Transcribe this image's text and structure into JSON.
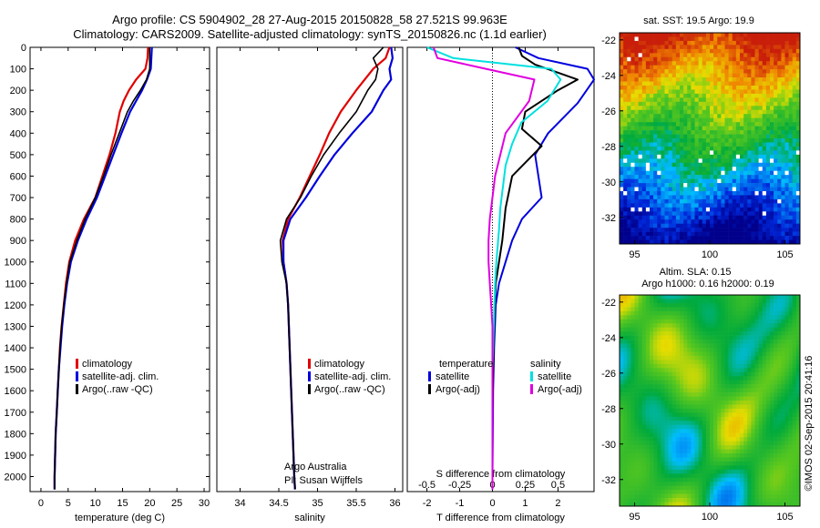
{
  "header": {
    "line1": "Argo profile: CS 5904902_28 27-Aug-2015 20150828_58 27.521S 99.963E",
    "line2": "Climatology: CARS2009. Satellite-adjusted climatology: synTS_20150826.nc (1.1d earlier)"
  },
  "chart_data": [
    {
      "type": "line",
      "id": "temperature",
      "xlabel": "temperature (deg C)",
      "ylabel": "",
      "xlim": [
        -2,
        31
      ],
      "ylim": [
        2070,
        0
      ],
      "xticks": [
        0,
        5,
        10,
        15,
        20,
        25,
        30
      ],
      "yticks": [
        0,
        100,
        200,
        300,
        400,
        500,
        600,
        700,
        800,
        900,
        1000,
        1100,
        1200,
        1300,
        1400,
        1500,
        1600,
        1700,
        1800,
        1900,
        2000
      ],
      "legend": [
        "climatology",
        "satellite-adj. clim.",
        "Argo(..raw -QC)"
      ],
      "series": [
        {
          "name": "climatology",
          "color": "#e00000",
          "points": [
            [
              19.7,
              0
            ],
            [
              19.6,
              50
            ],
            [
              19.2,
              100
            ],
            [
              17.5,
              150
            ],
            [
              16.2,
              200
            ],
            [
              15.2,
              250
            ],
            [
              14.5,
              300
            ],
            [
              13.7,
              400
            ],
            [
              12.6,
              500
            ],
            [
              11.3,
              600
            ],
            [
              10.0,
              700
            ],
            [
              7.9,
              800
            ],
            [
              6.3,
              900
            ],
            [
              5.2,
              1000
            ],
            [
              4.6,
              1100
            ],
            [
              4.2,
              1200
            ],
            [
              3.8,
              1300
            ],
            [
              3.5,
              1400
            ],
            [
              3.3,
              1500
            ],
            [
              3.1,
              1600
            ],
            [
              2.9,
              1700
            ],
            [
              2.7,
              1800
            ],
            [
              2.6,
              1900
            ],
            [
              2.5,
              2000
            ],
            [
              2.5,
              2060
            ]
          ]
        },
        {
          "name": "satellite-adj. clim.",
          "color": "#0000dd",
          "points": [
            [
              20.4,
              0
            ],
            [
              20.3,
              50
            ],
            [
              20.2,
              100
            ],
            [
              19.5,
              150
            ],
            [
              18.6,
              200
            ],
            [
              17.5,
              250
            ],
            [
              16.4,
              300
            ],
            [
              14.8,
              400
            ],
            [
              13.3,
              500
            ],
            [
              11.8,
              600
            ],
            [
              10.3,
              700
            ],
            [
              8.4,
              800
            ],
            [
              6.8,
              900
            ],
            [
              5.5,
              1000
            ],
            [
              4.8,
              1100
            ],
            [
              4.3,
              1200
            ],
            [
              3.9,
              1300
            ],
            [
              3.6,
              1400
            ],
            [
              3.3,
              1500
            ],
            [
              3.1,
              1600
            ],
            [
              2.9,
              1700
            ],
            [
              2.7,
              1800
            ],
            [
              2.6,
              1900
            ],
            [
              2.5,
              2000
            ],
            [
              2.5,
              2060
            ]
          ]
        },
        {
          "name": "Argo(..raw -QC)",
          "color": "#000000",
          "points": [
            [
              20.0,
              0
            ],
            [
              20.0,
              50
            ],
            [
              20.0,
              100
            ],
            [
              19.4,
              150
            ],
            [
              18.3,
              200
            ],
            [
              17.0,
              250
            ],
            [
              15.9,
              300
            ],
            [
              14.4,
              400
            ],
            [
              12.9,
              500
            ],
            [
              11.5,
              600
            ],
            [
              10.0,
              700
            ],
            [
              8.1,
              800
            ],
            [
              6.6,
              900
            ],
            [
              5.3,
              1000
            ],
            [
              4.7,
              1100
            ],
            [
              4.2,
              1200
            ],
            [
              3.8,
              1300
            ],
            [
              3.5,
              1400
            ],
            [
              3.3,
              1500
            ],
            [
              3.1,
              1600
            ],
            [
              2.9,
              1700
            ],
            [
              2.7,
              1800
            ],
            [
              2.6,
              1900
            ],
            [
              2.5,
              2000
            ],
            [
              2.5,
              2060
            ]
          ]
        }
      ]
    },
    {
      "type": "line",
      "id": "salinity",
      "xlabel": "salinity",
      "xlim": [
        33.7,
        36.1
      ],
      "ylim": [
        2070,
        0
      ],
      "xticks": [
        34,
        34.5,
        35,
        35.5,
        36
      ],
      "legend": [
        "climatology",
        "satellite-adj. clim.",
        "Argo(..raw -QC)"
      ],
      "annotation": [
        "Argo Australia",
        "PI: Susan Wijffels"
      ],
      "series": [
        {
          "name": "climatology",
          "color": "#e00000",
          "points": [
            [
              35.93,
              0
            ],
            [
              35.88,
              50
            ],
            [
              35.72,
              100
            ],
            [
              35.5,
              200
            ],
            [
              35.3,
              300
            ],
            [
              35.15,
              400
            ],
            [
              35.03,
              500
            ],
            [
              34.9,
              600
            ],
            [
              34.77,
              700
            ],
            [
              34.62,
              800
            ],
            [
              34.55,
              900
            ],
            [
              34.56,
              1000
            ],
            [
              34.6,
              1100
            ],
            [
              34.62,
              1200
            ],
            [
              34.64,
              1400
            ],
            [
              34.66,
              1600
            ],
            [
              34.68,
              1800
            ],
            [
              34.7,
              2000
            ],
            [
              34.71,
              2060
            ]
          ]
        },
        {
          "name": "satellite-adj. clim.",
          "color": "#0000dd",
          "points": [
            [
              35.95,
              0
            ],
            [
              35.97,
              50
            ],
            [
              35.93,
              100
            ],
            [
              35.95,
              150
            ],
            [
              35.85,
              200
            ],
            [
              35.7,
              300
            ],
            [
              35.45,
              400
            ],
            [
              35.22,
              500
            ],
            [
              35.03,
              600
            ],
            [
              34.85,
              700
            ],
            [
              34.65,
              800
            ],
            [
              34.56,
              900
            ],
            [
              34.56,
              1000
            ],
            [
              34.6,
              1100
            ],
            [
              34.62,
              1200
            ],
            [
              34.64,
              1400
            ],
            [
              34.66,
              1600
            ],
            [
              34.68,
              1800
            ],
            [
              34.7,
              2000
            ],
            [
              34.71,
              2060
            ]
          ]
        },
        {
          "name": "Argo(..raw -QC)",
          "color": "#000000",
          "points": [
            [
              35.85,
              0
            ],
            [
              35.72,
              50
            ],
            [
              35.78,
              100
            ],
            [
              35.75,
              150
            ],
            [
              35.65,
              200
            ],
            [
              35.5,
              300
            ],
            [
              35.28,
              400
            ],
            [
              35.08,
              500
            ],
            [
              34.92,
              600
            ],
            [
              34.78,
              700
            ],
            [
              34.6,
              800
            ],
            [
              34.52,
              900
            ],
            [
              34.54,
              1000
            ],
            [
              34.6,
              1100
            ],
            [
              34.62,
              1200
            ],
            [
              34.64,
              1400
            ],
            [
              34.66,
              1600
            ],
            [
              34.68,
              1800
            ],
            [
              34.7,
              2000
            ],
            [
              34.71,
              2060
            ]
          ]
        }
      ]
    },
    {
      "type": "line",
      "id": "difference",
      "xlabel": "T difference from climatology",
      "xlabel_top": "S difference from climatology",
      "xlim": [
        -2.6,
        3.1
      ],
      "ylim": [
        2070,
        0
      ],
      "xticks": [
        -2,
        -1,
        0,
        1,
        2
      ],
      "xticks_s": [
        "-0.5",
        "-0.25",
        "0",
        "0.25",
        "0.5"
      ],
      "legend_groups": [
        {
          "title": "temperature",
          "items": [
            "satellite",
            "Argo(-adj)"
          ]
        },
        {
          "title": "salinity",
          "items": [
            "satellite",
            "Argo(-adj)"
          ]
        }
      ],
      "series": [
        {
          "name": "temperature satellite",
          "color": "#0000dd",
          "points": [
            [
              0.7,
              0
            ],
            [
              1.4,
              50
            ],
            [
              2.9,
              100
            ],
            [
              3.1,
              150
            ],
            [
              2.6,
              260
            ],
            [
              1.7,
              400
            ],
            [
              1.3,
              500
            ],
            [
              1.4,
              600
            ],
            [
              1.5,
              700
            ],
            [
              0.9,
              800
            ],
            [
              0.6,
              900
            ],
            [
              0.4,
              1000
            ],
            [
              0.2,
              1100
            ],
            [
              0.1,
              1200
            ],
            [
              0.05,
              1400
            ],
            [
              0.02,
              1600
            ],
            [
              0.01,
              1800
            ],
            [
              0.0,
              2000
            ],
            [
              0.0,
              2060
            ]
          ]
        },
        {
          "name": "temperature Argo(-adj)",
          "color": "#000000",
          "points": [
            [
              0.8,
              0
            ],
            [
              0.9,
              40
            ],
            [
              1.3,
              80
            ],
            [
              2.6,
              150
            ],
            [
              2.0,
              200
            ],
            [
              1.0,
              300
            ],
            [
              0.9,
              380
            ],
            [
              1.5,
              460
            ],
            [
              0.6,
              600
            ],
            [
              0.4,
              750
            ],
            [
              0.3,
              900
            ],
            [
              0.2,
              1000
            ],
            [
              0.1,
              1100
            ],
            [
              0.05,
              1300
            ],
            [
              0.02,
              1500
            ],
            [
              0.0,
              1700
            ],
            [
              0.0,
              1900
            ],
            [
              0.0,
              2060
            ]
          ]
        },
        {
          "name": "salinity satellite",
          "color": "#00e0e0",
          "points": [
            [
              -0.5,
              0
            ],
            [
              -0.3,
              50
            ],
            [
              0.45,
              100
            ],
            [
              0.52,
              150
            ],
            [
              0.42,
              250
            ],
            [
              0.22,
              350
            ],
            [
              0.15,
              450
            ],
            [
              0.1,
              550
            ],
            [
              0.08,
              650
            ],
            [
              0.06,
              750
            ],
            [
              0.05,
              850
            ],
            [
              0.03,
              1000
            ],
            [
              0.02,
              1100
            ],
            [
              0.01,
              1300
            ],
            [
              0.0,
              1500
            ],
            [
              0.0,
              1700
            ],
            [
              0.0,
              2060
            ]
          ]
        },
        {
          "name": "salinity Argo(-adj)",
          "color": "#e000e0",
          "points": [
            [
              -0.45,
              0
            ],
            [
              -0.42,
              50
            ],
            [
              -0.05,
              100
            ],
            [
              0.32,
              150
            ],
            [
              0.28,
              250
            ],
            [
              0.22,
              300
            ],
            [
              0.1,
              400
            ],
            [
              0.02,
              600
            ],
            [
              -0.02,
              800
            ],
            [
              -0.03,
              900
            ],
            [
              -0.03,
              1000
            ],
            [
              -0.02,
              1100
            ],
            [
              -0.01,
              1200
            ],
            [
              0.0,
              1300
            ],
            [
              0.0,
              2060
            ]
          ]
        }
      ]
    },
    {
      "type": "heatmap",
      "id": "sst-map",
      "title": "sat. SST: 19.5 Argo: 19.9",
      "xlim": [
        94,
        106
      ],
      "ylim": [
        -33.5,
        -21.6
      ],
      "xticks": [
        95,
        100,
        105
      ],
      "yticks": [
        -22,
        -24,
        -26,
        -28,
        -30,
        -32
      ]
    },
    {
      "type": "heatmap",
      "id": "sla-map",
      "title_lines": [
        "Altim. SLA: 0.15",
        "Argo h1000: 0.16 h2000: 0.19"
      ],
      "xlim": [
        94,
        106
      ],
      "ylim": [
        -33.5,
        -21.6
      ],
      "xticks": [
        95,
        100,
        105
      ],
      "yticks": [
        -22,
        -24,
        -26,
        -28,
        -30,
        -32
      ]
    }
  ],
  "side_label": "©IMOS 02-Sep-2015 20:41:16"
}
